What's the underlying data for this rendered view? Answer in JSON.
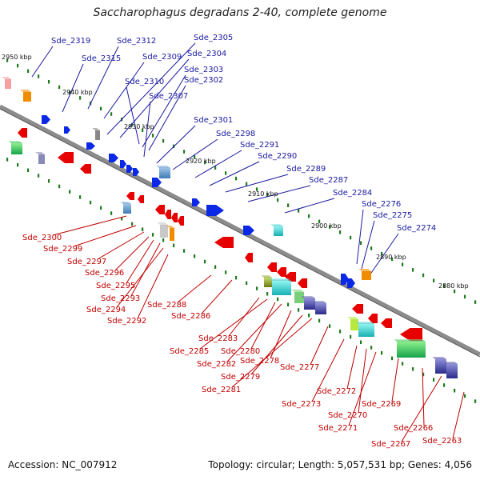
{
  "title": "Saccharophagus degradans 2-40, complete genome",
  "footer": {
    "accession": "Accession: NC_007912",
    "summary": "Topology: circular; Length: 5,057,531 bp; Genes: 4,056"
  },
  "colors": {
    "forward_label": "#1a1aa0",
    "reverse_label": "#c00000",
    "forward_gene": "#0a28e6",
    "reverse_gene": "#e60000",
    "backbone": "#8c8c8c",
    "tick": "#1f7a1f"
  },
  "kbp_labels": [
    {
      "text": "2950 kbp"
    },
    {
      "text": "2940 kbp"
    },
    {
      "text": "2930 kbp"
    },
    {
      "text": "2920 kbp"
    },
    {
      "text": "2910 kbp"
    },
    {
      "text": "2900 kbp"
    },
    {
      "text": "2890 kbp"
    },
    {
      "text": "2880 kbp"
    }
  ],
  "forward_genes": [
    "Sde_2319",
    "Sde_2312",
    "Sde_2315",
    "Sde_2309",
    "Sde_2305",
    "Sde_2304",
    "Sde_2310",
    "Sde_2303",
    "Sde_2302",
    "Sde_2307",
    "Sde_2301",
    "Sde_2298",
    "Sde_2291",
    "Sde_2290",
    "Sde_2289",
    "Sde_2287",
    "Sde_2284",
    "Sde_2276",
    "Sde_2275",
    "Sde_2274"
  ],
  "reverse_genes": [
    "Sde_2300",
    "Sde_2299",
    "Sde_2297",
    "Sde_2296",
    "Sde_2295",
    "Sde_2293",
    "Sde_2294",
    "Sde_2292",
    "Sde_2288",
    "Sde_2286",
    "Sde_2283",
    "Sde_2285",
    "Sde_2280",
    "Sde_2282",
    "Sde_2278",
    "Sde_2279",
    "Sde_2281",
    "Sde_2277",
    "Sde_2273",
    "Sde_2272",
    "Sde_2270",
    "Sde_2271",
    "Sde_2269",
    "Sde_2266",
    "Sde_2267",
    "Sde_2263"
  ]
}
